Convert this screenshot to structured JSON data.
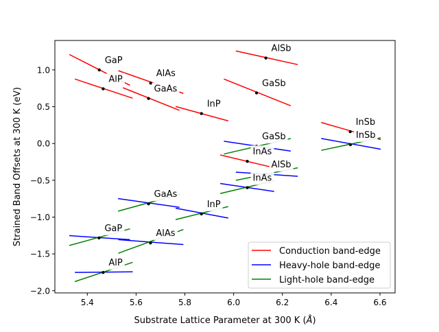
{
  "chart_data": {
    "type": "line",
    "xlabel": "Substrate Lattice Parameter at 300 K (",
    "xlabel_unit": "Å",
    "xlabel_close": ")",
    "ylabel": "Strained Band Offsets at 300 K (eV)",
    "xlim": [
      5.267,
      6.662
    ],
    "ylim": [
      -2.03,
      1.4
    ],
    "xticks": [
      5.4,
      5.6,
      5.8,
      6.0,
      6.2,
      6.4,
      6.6
    ],
    "xtick_labels": [
      "5.4",
      "5.6",
      "5.8",
      "6.0",
      "6.2",
      "6.4",
      "6.6"
    ],
    "yticks": [
      -2.0,
      -1.5,
      -1.0,
      -0.5,
      0.0,
      0.5,
      1.0
    ],
    "ytick_labels": [
      "−2.0",
      "−1.5",
      "−1.0",
      "−0.5",
      "0.0",
      "0.5",
      "1.0"
    ],
    "grid": false,
    "legend_position": "lower-right",
    "series": [
      {
        "name": "Conduction band-edge",
        "color": "#ff0000",
        "key": "conduction"
      },
      {
        "name": "Heavy-hole band-edge",
        "color": "#0000ff",
        "key": "heavy_hole"
      },
      {
        "name": "Light-hole band-edge",
        "color": "#008000",
        "key": "light_hole"
      }
    ],
    "conduction": [
      {
        "label": "GaP",
        "point": [
          5.449,
          1.0
        ],
        "x": [
          5.326,
          5.575
        ],
        "y": [
          1.21,
          0.79
        ]
      },
      {
        "label": "AlP",
        "point": [
          5.465,
          0.743
        ],
        "x": [
          5.349,
          5.586
        ],
        "y": [
          0.876,
          0.615
        ]
      },
      {
        "label": "AlAs",
        "point": [
          5.66,
          0.82
        ],
        "x": [
          5.527,
          5.794
        ],
        "y": [
          0.99,
          0.68
        ]
      },
      {
        "label": "GaAs",
        "point": [
          5.651,
          0.612
        ],
        "x": [
          5.546,
          5.778
        ],
        "y": [
          0.758,
          0.45
        ]
      },
      {
        "label": "InP",
        "point": [
          5.868,
          0.407
        ],
        "x": [
          5.762,
          5.978
        ],
        "y": [
          0.503,
          0.307
        ]
      },
      {
        "label": "AlSb",
        "point": [
          6.132,
          1.162
        ],
        "x": [
          6.009,
          6.263
        ],
        "y": [
          1.258,
          1.072
        ]
      },
      {
        "label": "GaSb",
        "point": [
          6.094,
          0.687
        ],
        "x": [
          5.96,
          6.234
        ],
        "y": [
          0.876,
          0.513
        ]
      },
      {
        "label": "InSb",
        "point": [
          6.478,
          0.161
        ],
        "x": [
          6.359,
          6.603
        ],
        "y": [
          0.286,
          0.053
        ]
      },
      {
        "label": "InAs",
        "point": [
          6.056,
          -0.242
        ],
        "x": [
          5.945,
          6.166
        ],
        "y": [
          -0.155,
          -0.33
        ]
      }
    ],
    "valence": [
      {
        "label": "GaP",
        "point": [
          5.448,
          -1.283
        ],
        "x": [
          5.326,
          5.575
        ],
        "heavy_hole": [
          -1.252,
          -1.307
        ],
        "light_hole": [
          -1.386,
          -1.159
        ]
      },
      {
        "label": "AlP",
        "point": [
          5.465,
          -1.752
        ],
        "x": [
          5.349,
          5.586
        ],
        "heavy_hole": [
          -1.752,
          -1.743
        ],
        "light_hole": [
          -1.876,
          -1.615
        ]
      },
      {
        "label": "AlAs",
        "point": [
          5.659,
          -1.351
        ],
        "x": [
          5.527,
          5.794
        ],
        "heavy_hole": [
          -1.307,
          -1.373
        ],
        "light_hole": [
          -1.491,
          -1.168
        ]
      },
      {
        "label": "GaAs",
        "point": [
          5.651,
          -0.82
        ],
        "x": [
          5.526,
          5.778
        ],
        "heavy_hole": [
          -0.748,
          -0.867
        ],
        "light_hole": [
          -0.92,
          -0.69
        ]
      },
      {
        "label": "InP",
        "point": [
          5.868,
          -0.957
        ],
        "x": [
          5.762,
          5.978
        ],
        "heavy_hole": [
          -0.879,
          -1.013
        ],
        "light_hole": [
          -1.034,
          -0.857
        ]
      },
      {
        "label": "AlSb",
        "point": [
          6.132,
          -0.417
        ],
        "x": [
          6.009,
          6.263
        ],
        "heavy_hole": [
          -0.389,
          -0.445
        ],
        "light_hole": [
          -0.5,
          -0.33
        ]
      },
      {
        "label": "GaSb",
        "point": [
          6.094,
          -0.037
        ],
        "x": [
          5.96,
          6.234
        ],
        "heavy_hole": [
          0.031,
          -0.103
        ],
        "light_hole": [
          -0.143,
          0.068
        ]
      },
      {
        "label": "InSb",
        "point": [
          6.479,
          -0.016
        ],
        "x": [
          6.359,
          6.603
        ],
        "heavy_hole": [
          0.068,
          -0.077
        ],
        "light_hole": [
          -0.093,
          0.078
        ]
      },
      {
        "label": "InAs",
        "point": [
          6.056,
          -0.6
        ],
        "x": [
          5.945,
          6.166
        ],
        "heavy_hole": [
          -0.543,
          -0.652
        ],
        "light_hole": [
          -0.68,
          -0.506
        ]
      }
    ]
  }
}
